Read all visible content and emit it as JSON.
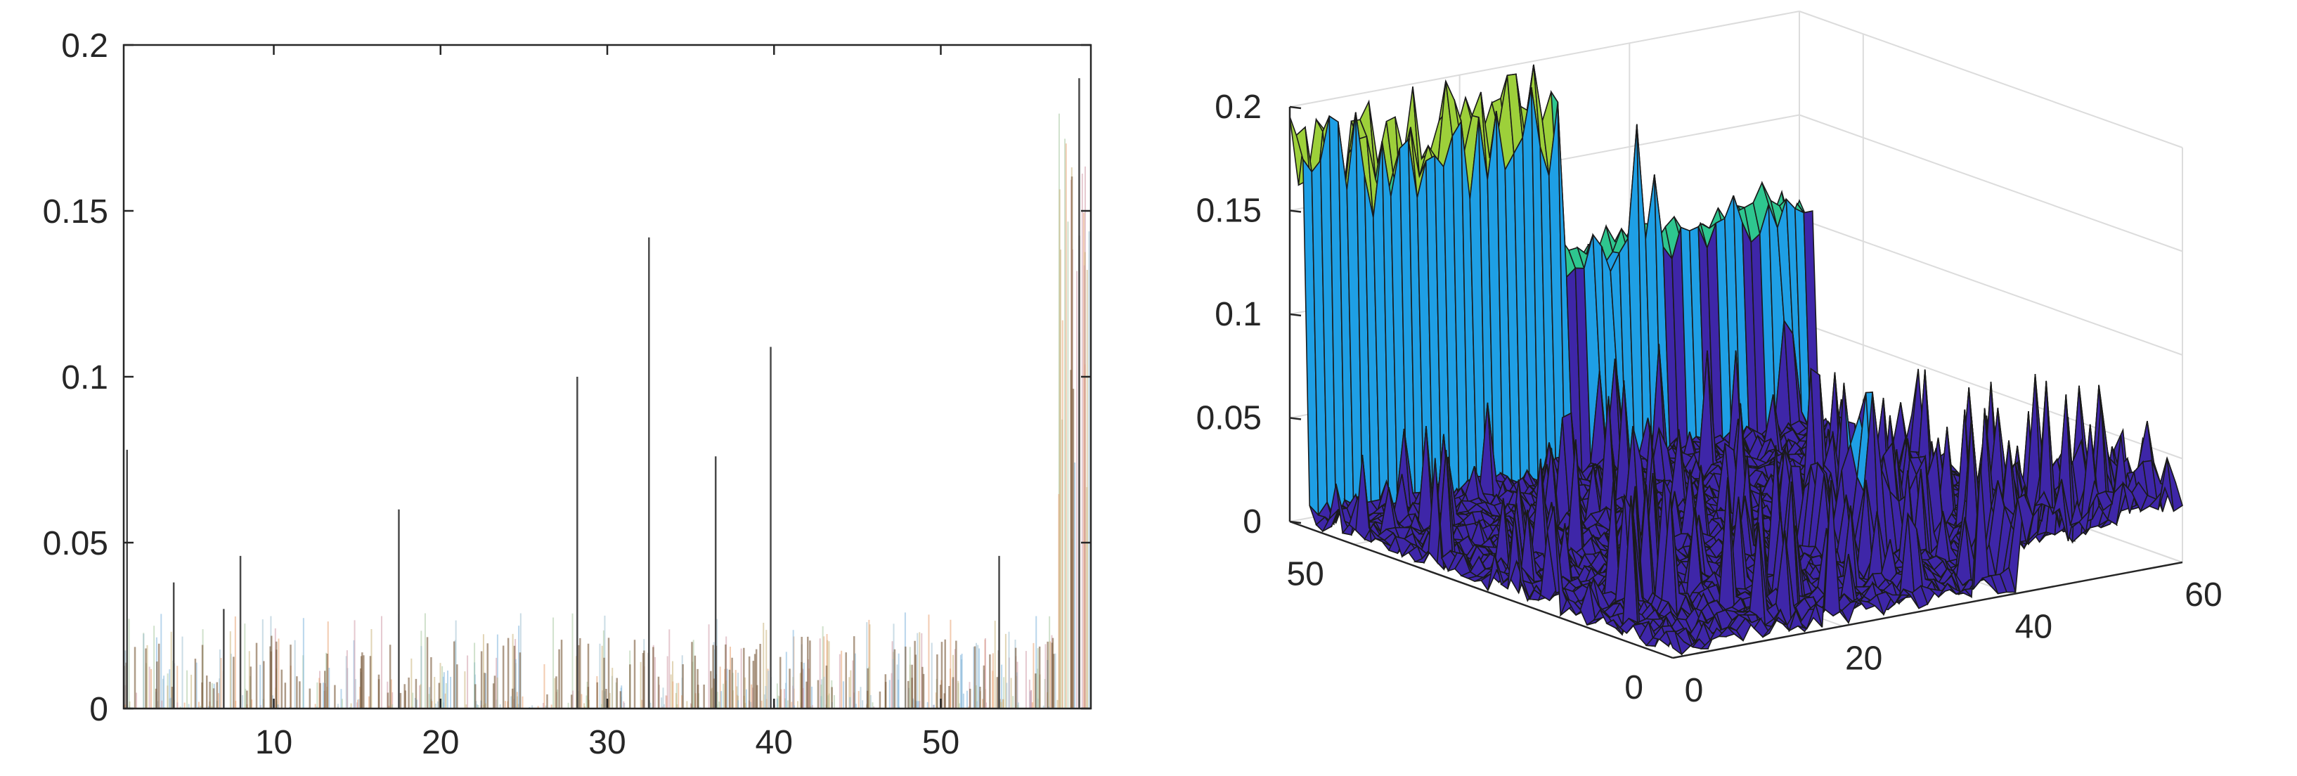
{
  "chart_data": [
    {
      "type": "bar",
      "xlim": [
        1,
        59
      ],
      "ylim": [
        0,
        0.2
      ],
      "xticks": [
        10,
        20,
        30,
        40,
        50
      ],
      "yticks": [
        0,
        0.05,
        0.1,
        0.15,
        0.2
      ],
      "xtick_labels": [
        "10",
        "20",
        "30",
        "40",
        "50"
      ],
      "ytick_labels": [
        "0",
        "0.05",
        "0.1",
        "0.15",
        "0.2"
      ],
      "grid": false,
      "peaks": [
        {
          "x": 1.2,
          "y": 0.078
        },
        {
          "x": 4.0,
          "y": 0.038
        },
        {
          "x": 7.0,
          "y": 0.03
        },
        {
          "x": 8.0,
          "y": 0.046
        },
        {
          "x": 17.5,
          "y": 0.06
        },
        {
          "x": 28.2,
          "y": 0.1
        },
        {
          "x": 32.5,
          "y": 0.142
        },
        {
          "x": 36.5,
          "y": 0.076
        },
        {
          "x": 39.8,
          "y": 0.109
        },
        {
          "x": 53.5,
          "y": 0.046
        },
        {
          "x": 58.3,
          "y": 0.19
        }
      ]
    },
    {
      "type": "surface",
      "xlim": [
        0,
        60
      ],
      "ylim": [
        0,
        60
      ],
      "zlim": [
        0,
        0.2
      ],
      "xticks": [
        0,
        20,
        40,
        60
      ],
      "yticks": [
        0,
        50
      ],
      "zticks": [
        0,
        0.05,
        0.1,
        0.15,
        0.2
      ],
      "xtick_labels": [
        "0",
        "20",
        "40",
        "60"
      ],
      "ytick_labels": [
        "0",
        "50"
      ],
      "ztick_labels": [
        "0",
        "0.05",
        "0.1",
        "0.15",
        "0.2"
      ],
      "grid": true,
      "colormap": "parula",
      "colors": {
        "low": "#3e26a8",
        "mid": "#1e9fe5",
        "high": "#2ec68f",
        "peak": "#9dd03a"
      }
    }
  ]
}
